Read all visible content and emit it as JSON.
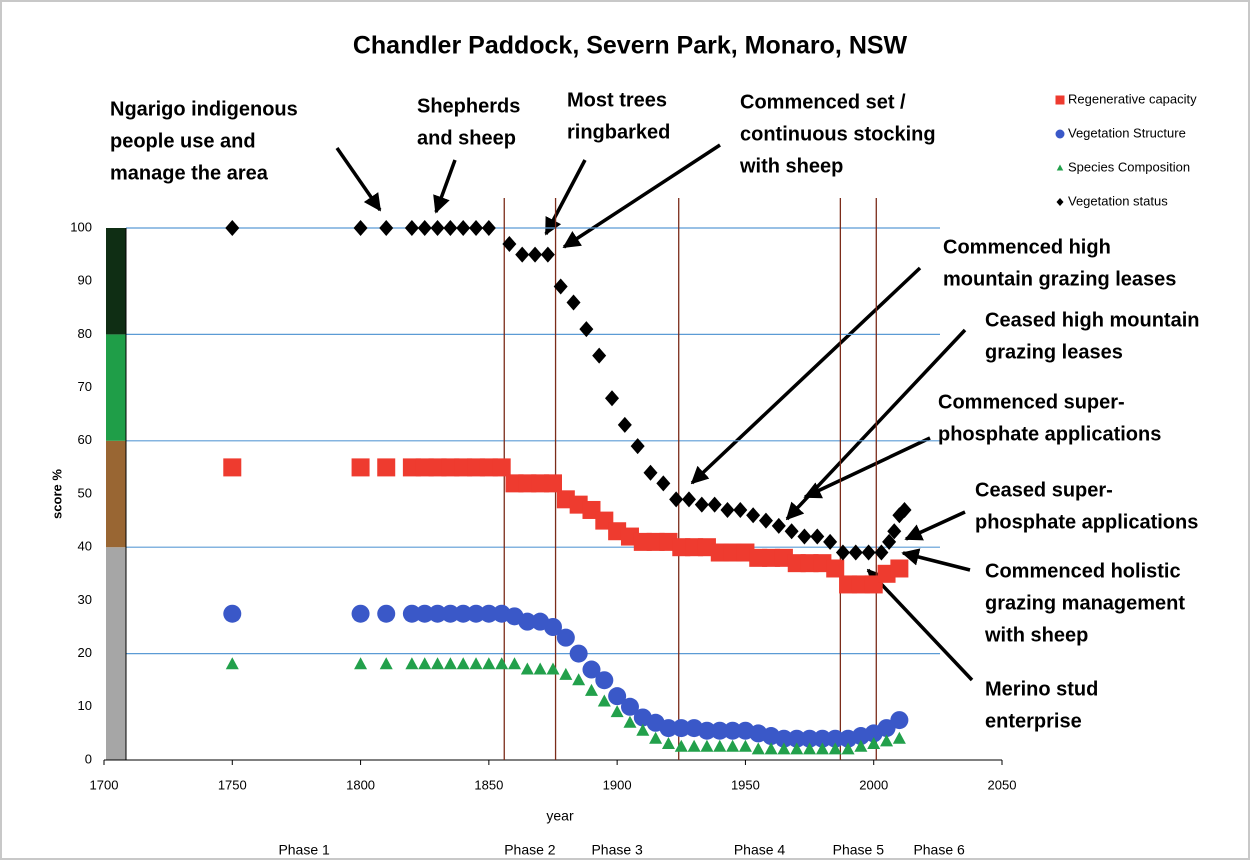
{
  "chart_data": {
    "type": "scatter",
    "title": "Chandler Paddock, Severn Park,  Monaro, NSW",
    "x_label": "year",
    "y_label": "score %",
    "xlim": [
      1700,
      2050
    ],
    "xticks": [
      1700,
      1750,
      1800,
      1850,
      1900,
      1950,
      2000,
      2050
    ],
    "ylim": [
      0,
      100
    ],
    "yticks": [
      0,
      10,
      20,
      30,
      40,
      50,
      60,
      70,
      80,
      90,
      100
    ],
    "grid_lines": [
      20,
      40,
      60,
      80,
      100
    ],
    "grid_color": "#5b9bd5",
    "legend": "top-right",
    "status_bands": [
      {
        "from": 0,
        "to": 40,
        "color": "#a6a6a6"
      },
      {
        "from": 40,
        "to": 60,
        "color": "#996633"
      },
      {
        "from": 60,
        "to": 80,
        "color": "#1f9e48"
      },
      {
        "from": 80,
        "to": 100,
        "color": "#0f2e14"
      }
    ],
    "phase_boundaries": [
      1856,
      1876,
      1924,
      1987,
      2001
    ],
    "phase_line_color": "#7b2c1a",
    "phases": [
      "Phase 1",
      "Phase 2",
      "Phase 3",
      "Phase 4",
      "Phase 5",
      "Phase 6"
    ],
    "series": [
      {
        "name": "Regenerative capacity",
        "color": "#ee3b2f",
        "marker": "square",
        "x": [
          1750,
          1800,
          1810,
          1820,
          1825,
          1830,
          1835,
          1840,
          1845,
          1850,
          1855,
          1860,
          1865,
          1870,
          1875,
          1880,
          1885,
          1890,
          1895,
          1900,
          1905,
          1910,
          1915,
          1920,
          1925,
          1930,
          1935,
          1940,
          1945,
          1950,
          1955,
          1960,
          1965,
          1970,
          1975,
          1980,
          1985,
          1990,
          1995,
          2000,
          2005,
          2010
        ],
        "values": [
          55,
          55,
          55,
          55,
          55,
          55,
          55,
          55,
          55,
          55,
          55,
          52,
          52,
          52,
          52,
          49,
          48,
          47,
          45,
          43,
          42,
          41,
          41,
          41,
          40,
          40,
          40,
          39,
          39,
          39,
          38,
          38,
          38,
          37,
          37,
          37,
          36,
          33,
          33,
          33,
          35,
          36
        ]
      },
      {
        "name": "Vegetation Structure",
        "color": "#3a58c8",
        "marker": "circle",
        "x": [
          1750,
          1800,
          1810,
          1820,
          1825,
          1830,
          1835,
          1840,
          1845,
          1850,
          1855,
          1860,
          1865,
          1870,
          1875,
          1880,
          1885,
          1890,
          1895,
          1900,
          1905,
          1910,
          1915,
          1920,
          1925,
          1930,
          1935,
          1940,
          1945,
          1950,
          1955,
          1960,
          1965,
          1970,
          1975,
          1980,
          1985,
          1990,
          1995,
          2000,
          2005,
          2010
        ],
        "values": [
          27.5,
          27.5,
          27.5,
          27.5,
          27.5,
          27.5,
          27.5,
          27.5,
          27.5,
          27.5,
          27.5,
          27,
          26,
          26,
          25,
          23,
          20,
          17,
          15,
          12,
          10,
          8,
          7,
          6,
          6,
          6,
          5.5,
          5.5,
          5.5,
          5.5,
          5,
          4.5,
          4,
          4,
          4,
          4,
          4,
          4,
          4.5,
          5,
          6,
          7.5
        ]
      },
      {
        "name": "Species Composition",
        "color": "#22a04b",
        "marker": "triangle",
        "x": [
          1750,
          1800,
          1810,
          1820,
          1825,
          1830,
          1835,
          1840,
          1845,
          1850,
          1855,
          1860,
          1865,
          1870,
          1875,
          1880,
          1885,
          1890,
          1895,
          1900,
          1905,
          1910,
          1915,
          1920,
          1925,
          1930,
          1935,
          1940,
          1945,
          1950,
          1955,
          1960,
          1965,
          1970,
          1975,
          1980,
          1985,
          1990,
          1995,
          2000,
          2005,
          2010
        ],
        "values": [
          18,
          18,
          18,
          18,
          18,
          18,
          18,
          18,
          18,
          18,
          18,
          18,
          17,
          17,
          17,
          16,
          15,
          13,
          11,
          9,
          7,
          5.5,
          4,
          3,
          2.5,
          2.5,
          2.5,
          2.5,
          2.5,
          2.5,
          2,
          2,
          2,
          2,
          2,
          2,
          2,
          2,
          2.5,
          3,
          3.5,
          4
        ]
      },
      {
        "name": "Vegetation status",
        "color": "#000000",
        "marker": "diamond",
        "x": [
          1750,
          1800,
          1810,
          1820,
          1825,
          1830,
          1835,
          1840,
          1845,
          1850,
          1858,
          1863,
          1868,
          1873,
          1878,
          1883,
          1888,
          1893,
          1898,
          1903,
          1908,
          1913,
          1918,
          1923,
          1928,
          1933,
          1938,
          1943,
          1948,
          1953,
          1958,
          1963,
          1968,
          1973,
          1978,
          1983,
          1988,
          1993,
          1998,
          2003,
          2006,
          2008,
          2010,
          2012
        ],
        "values": [
          100,
          100,
          100,
          100,
          100,
          100,
          100,
          100,
          100,
          100,
          97,
          95,
          95,
          95,
          89,
          86,
          81,
          76,
          68,
          63,
          59,
          54,
          52,
          49,
          49,
          48,
          48,
          47,
          47,
          46,
          45,
          44,
          43,
          42,
          42,
          41,
          39,
          39,
          39,
          39,
          41,
          43,
          46,
          47
        ]
      }
    ],
    "annotations": [
      [
        "Ngarigo indigenous",
        "people use and",
        "manage the area"
      ],
      [
        "Shepherds",
        "and sheep"
      ],
      [
        "Most trees",
        "ringbarked"
      ],
      [
        "Commenced set /",
        "continuous stocking",
        "with sheep"
      ],
      [
        "Commenced high",
        "mountain grazing leases"
      ],
      [
        "Ceased high mountain",
        "grazing leases"
      ],
      [
        "Commenced super-",
        "phosphate applications"
      ],
      [
        "Ceased super-",
        "phosphate applications"
      ],
      [
        "Commenced holistic",
        "grazing management",
        "with sheep"
      ],
      [
        "Merino stud",
        "enterprise"
      ]
    ]
  }
}
